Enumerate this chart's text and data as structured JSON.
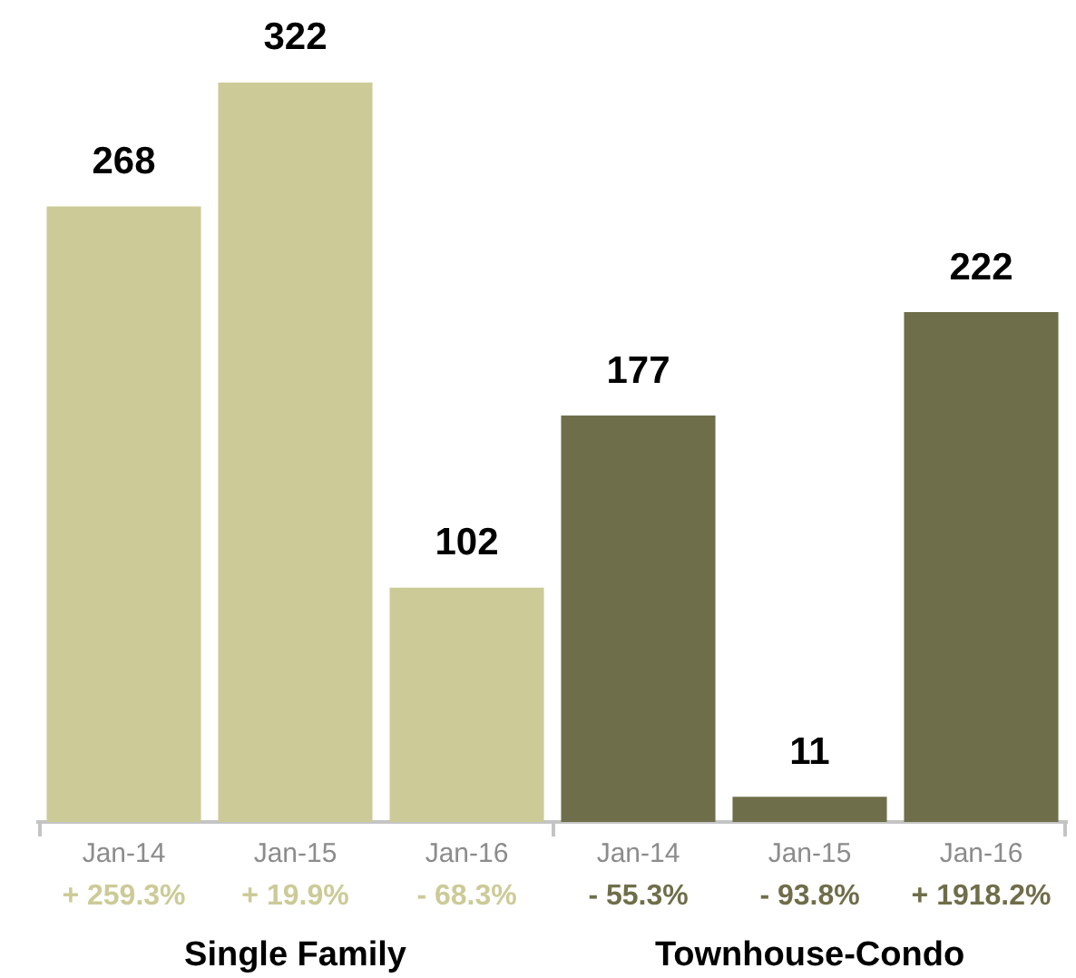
{
  "chart_data": {
    "type": "bar",
    "categories": [
      "Jan-14",
      "Jan-15",
      "Jan-16",
      "Jan-14",
      "Jan-15",
      "Jan-16"
    ],
    "values": [
      268,
      322,
      102,
      177,
      11,
      222
    ],
    "colors": [
      "#cccb98",
      "#cccb98",
      "#cccb98",
      "#6f6e4a",
      "#6f6e4a",
      "#6f6e4a"
    ],
    "annotations": [
      "+ 259.3%",
      "+ 19.9%",
      "- 68.3%",
      "- 55.3%",
      "- 93.8%",
      "+ 1918.2%",
      "Single Family",
      "Townhouse-Condo"
    ],
    "data_labels": true,
    "tick_labels": "x"
  }
}
